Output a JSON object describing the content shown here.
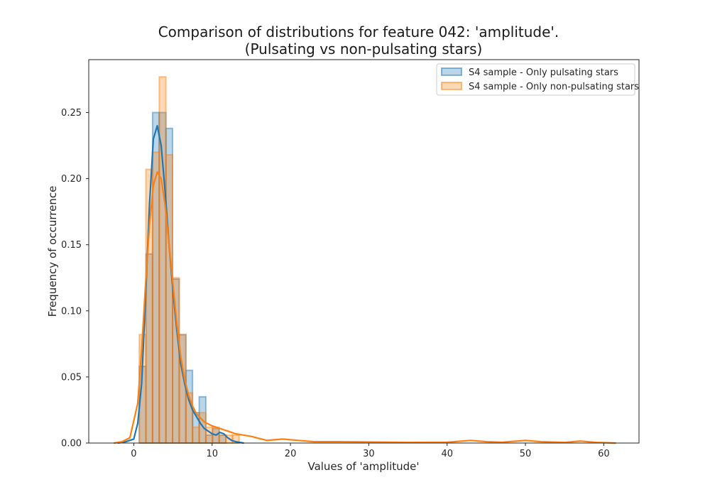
{
  "chart_data": {
    "type": "histogram",
    "title_line1": "Comparison of distributions for feature 042: 'amplitude'.",
    "title_line2": "(Pulsating vs non-pulsating stars)",
    "xlabel": "Values of 'amplitude'",
    "ylabel": "Frequency of occurrence",
    "xlim": [
      -5.75,
      64.5
    ],
    "ylim": [
      0,
      0.29
    ],
    "xticks": [
      0,
      10,
      20,
      30,
      40,
      50,
      60
    ],
    "yticks": [
      0.0,
      0.05,
      0.1,
      0.15,
      0.2,
      0.25
    ],
    "xtick_labels": [
      "0",
      "10",
      "20",
      "30",
      "40",
      "50",
      "60"
    ],
    "ytick_labels": [
      "0.00",
      "0.05",
      "0.10",
      "0.15",
      "0.20",
      "0.25"
    ],
    "grid": false,
    "legend_position": "top-right",
    "series": [
      {
        "name": "S4 sample - Only pulsating stars",
        "color": "#1f77b4",
        "bin_edges": [
          0.7,
          1.55,
          2.4,
          3.25,
          4.1,
          4.95,
          5.8,
          6.65,
          7.5,
          8.35,
          9.2,
          10.05,
          10.9,
          11.75,
          12.6
        ],
        "counts": [
          0.058,
          0.143,
          0.25,
          0.25,
          0.238,
          0.124,
          0.082,
          0.055,
          0.023,
          0.035,
          0.006,
          0.011,
          0.006,
          0.0
        ],
        "kde_x": [
          -2.0,
          -1.0,
          0.0,
          0.5,
          1.0,
          1.5,
          2.0,
          2.5,
          3.0,
          3.5,
          4.0,
          4.5,
          5.0,
          5.5,
          6.0,
          6.5,
          7.0,
          7.5,
          8.0,
          8.5,
          9.0,
          9.5,
          10.0,
          10.5,
          11.0,
          11.5,
          12.0,
          12.5,
          13.0,
          14.0
        ],
        "kde_y": [
          0.0,
          0.001,
          0.003,
          0.015,
          0.045,
          0.11,
          0.18,
          0.23,
          0.24,
          0.225,
          0.19,
          0.15,
          0.115,
          0.085,
          0.06,
          0.045,
          0.033,
          0.025,
          0.02,
          0.015,
          0.011,
          0.009,
          0.007,
          0.006,
          0.008,
          0.007,
          0.004,
          0.002,
          0.001,
          0.0
        ]
      },
      {
        "name": "S4 sample - Only non-pulsating stars",
        "color": "#ff7f0e",
        "bin_edges": [
          0.7,
          1.55,
          2.4,
          3.25,
          4.1,
          4.95,
          5.8,
          6.65,
          7.5,
          8.35,
          9.2,
          10.05,
          10.9,
          11.75,
          12.6,
          13.45
        ],
        "counts": [
          0.082,
          0.207,
          0.22,
          0.277,
          0.218,
          0.125,
          0.082,
          0.038,
          0.012,
          0.023,
          0.012,
          0.012,
          0.006,
          0.006,
          0.006
        ],
        "kde_x": [
          -2.5,
          -1.5,
          -0.5,
          0.5,
          1.0,
          1.5,
          2.0,
          2.5,
          3.0,
          3.5,
          4.0,
          4.5,
          5.0,
          5.5,
          6.0,
          6.5,
          7.0,
          7.5,
          8.0,
          9.0,
          10.0,
          11.0,
          12.0,
          13.0,
          14.0,
          15.0,
          17.0,
          19.0,
          21.0,
          23.0,
          26.0,
          30.0,
          35.0,
          40.0,
          43.0,
          45.0,
          47.0,
          50.0,
          52.0,
          55.0,
          57.0,
          59.0,
          61.5
        ],
        "kde_y": [
          0.0,
          0.001,
          0.004,
          0.03,
          0.07,
          0.12,
          0.165,
          0.195,
          0.205,
          0.2,
          0.18,
          0.15,
          0.12,
          0.09,
          0.065,
          0.048,
          0.036,
          0.028,
          0.022,
          0.016,
          0.013,
          0.011,
          0.009,
          0.007,
          0.006,
          0.005,
          0.002,
          0.003,
          0.002,
          0.001,
          0.001,
          0.0008,
          0.0005,
          0.0006,
          0.002,
          0.001,
          0.0006,
          0.002,
          0.001,
          0.0005,
          0.0015,
          0.0005,
          0.0
        ]
      }
    ]
  }
}
